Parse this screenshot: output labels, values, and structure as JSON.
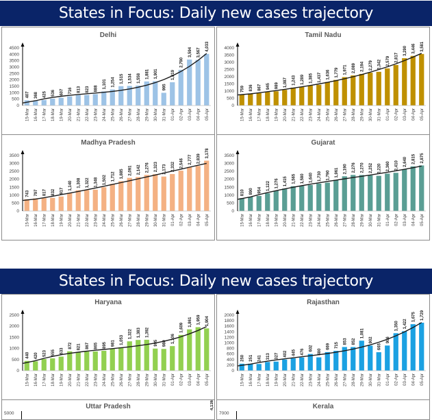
{
  "slides": [
    {
      "title": "States in Focus: Daily new cases trajectory"
    },
    {
      "title": "States in Focus: Daily new cases trajectory"
    }
  ],
  "chart_data": [
    {
      "type": "bar",
      "title": "Delhi",
      "color": "#9dc3e6",
      "ylim": [
        0,
        4500
      ],
      "ystep": 500,
      "trendline": true,
      "categories": [
        "15-Mar",
        "16-Mar",
        "17-Mar",
        "18-Mar",
        "19-Mar",
        "20-Mar",
        "21-Mar",
        "22-Mar",
        "23-Mar",
        "24-Mar",
        "25-Mar",
        "26-Mar",
        "27-Mar",
        "28-Mar",
        "29-Mar",
        "30-Mar",
        "31-Mar",
        "01-Apr",
        "02-Apr",
        "03-Apr",
        "04-Apr",
        "05-Apr"
      ],
      "values": [
        407,
        368,
        425,
        536,
        607,
        716,
        813,
        823,
        888,
        1101,
        1254,
        1515,
        1534,
        1558,
        1881,
        1901,
        995,
        1819,
        2790,
        3594,
        3567,
        4033
      ]
    },
    {
      "type": "bar",
      "title": "Tamil Nadu",
      "color": "#bf9000",
      "ylim": [
        0,
        4000
      ],
      "ystep": 500,
      "trendline": true,
      "categories": [
        "15-Mar",
        "16-Mar",
        "17-Mar",
        "18-Mar",
        "19-Mar",
        "20-Mar",
        "21-Mar",
        "22-Mar",
        "23-Mar",
        "24-Mar",
        "25-Mar",
        "26-Mar",
        "27-Mar",
        "28-Mar",
        "29-Mar",
        "30-Mar",
        "31-Mar",
        "01-Apr",
        "02-Apr",
        "03-Apr",
        "04-Apr",
        "05-Apr"
      ],
      "values": [
        759,
        836,
        867,
        945,
        989,
        1087,
        1243,
        1289,
        1385,
        1437,
        1636,
        1779,
        1971,
        2089,
        2194,
        2279,
        2342,
        2579,
        2817,
        3290,
        3446,
        3581
      ]
    },
    {
      "type": "bar",
      "title": "Madhya Pradesh",
      "color": "#f4b183",
      "ylim": [
        0,
        3500
      ],
      "ystep": 500,
      "trendline": true,
      "categories": [
        "15-Mar",
        "16-Mar",
        "17-Mar",
        "18-Mar",
        "19-Mar",
        "20-Mar",
        "21-Mar",
        "22-Mar",
        "23-Mar",
        "24-Mar",
        "25-Mar",
        "26-Mar",
        "27-Mar",
        "28-Mar",
        "29-Mar",
        "30-Mar",
        "31-Mar",
        "01-Apr",
        "02-Apr",
        "03-Apr",
        "04-Apr",
        "05-Apr"
      ],
      "values": [
        743,
        797,
        817,
        832,
        917,
        1140,
        1308,
        1322,
        1348,
        1502,
        1712,
        1885,
        2091,
        2142,
        2276,
        2323,
        2173,
        2332,
        2546,
        2777,
        2839,
        3178
      ]
    },
    {
      "type": "bar",
      "title": "Gujarat",
      "color": "#5a9e94",
      "ylim": [
        0,
        3500
      ],
      "ystep": 500,
      "trendline": true,
      "categories": [
        "15-Mar",
        "16-Mar",
        "17-Mar",
        "18-Mar",
        "19-Mar",
        "20-Mar",
        "21-Mar",
        "22-Mar",
        "23-Mar",
        "24-Mar",
        "25-Mar",
        "26-Mar",
        "27-Mar",
        "28-Mar",
        "29-Mar",
        "30-Mar",
        "31-Mar",
        "01-Apr",
        "02-Apr",
        "03-Apr",
        "04-Apr",
        "05-Apr"
      ],
      "values": [
        810,
        890,
        954,
        1122,
        1276,
        1415,
        1565,
        1580,
        1640,
        1730,
        1790,
        1961,
        2190,
        2276,
        2270,
        2252,
        2220,
        2360,
        2410,
        2640,
        2815,
        2875
      ]
    },
    {
      "type": "bar",
      "title": "Haryana",
      "color": "#92d050",
      "ylim": [
        0,
        2500
      ],
      "ystep": 500,
      "trendline": true,
      "categories": [
        "15-Mar",
        "16-Mar",
        "17-Mar",
        "18-Mar",
        "19-Mar",
        "20-Mar",
        "21-Mar",
        "22-Mar",
        "23-Mar",
        "24-Mar",
        "25-Mar",
        "26-Mar",
        "27-Mar",
        "28-Mar",
        "29-Mar",
        "30-Mar",
        "31-Mar",
        "01-Apr",
        "02-Apr",
        "03-Apr",
        "04-Apr",
        "05-Apr"
      ],
      "values": [
        440,
        420,
        523,
        555,
        633,
        872,
        821,
        867,
        865,
        895,
        981,
        1053,
        1322,
        1383,
        1392,
        995,
        980,
        1106,
        1609,
        1861,
        1959,
        1904
      ]
    },
    {
      "type": "bar",
      "title": "Rajasthan",
      "color": "#1ba1e2",
      "ylim": [
        0,
        2000
      ],
      "ystep": 200,
      "trendline": true,
      "categories": [
        "15-Mar",
        "16-Mar",
        "17-Mar",
        "18-Mar",
        "19-Mar",
        "20-Mar",
        "21-Mar",
        "22-Mar",
        "23-Mar",
        "24-Mar",
        "25-Mar",
        "26-Mar",
        "27-Mar",
        "28-Mar",
        "29-Mar",
        "30-Mar",
        "31-Mar",
        "01-Apr",
        "02-Apr",
        "03-Apr",
        "04-Apr",
        "05-Apr"
      ],
      "values": [
        250,
        251,
        241,
        313,
        327,
        402,
        445,
        476,
        602,
        480,
        669,
        715,
        853,
        852,
        1081,
        902,
        665,
        906,
        1350,
        1422,
        1675,
        1729
      ]
    },
    {
      "type": "bar",
      "title": "Uttar Pradesh",
      "ytick_top": "5000",
      "visible_value_label": "4,136"
    },
    {
      "type": "bar",
      "title": "Kerala",
      "ytick_top": "7000"
    }
  ]
}
